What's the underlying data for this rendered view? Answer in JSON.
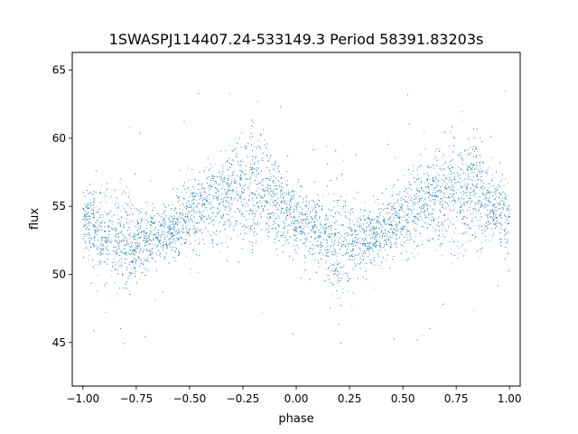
{
  "chart_data": {
    "type": "scatter",
    "title": "1SWASPJ114407.24-533149.3 Period 58391.83203s",
    "xlabel": "phase",
    "ylabel": "flux",
    "xlim": [
      -1.05,
      1.05
    ],
    "ylim": [
      41.8,
      66.3
    ],
    "x_ticks": [
      -1.0,
      -0.75,
      -0.5,
      -0.25,
      0.0,
      0.25,
      0.5,
      0.75,
      1.0
    ],
    "x_tick_labels": [
      "−1.00",
      "−0.75",
      "−0.50",
      "−0.25",
      "0.00",
      "0.25",
      "0.50",
      "0.75",
      "1.00"
    ],
    "y_ticks": [
      45,
      50,
      55,
      60,
      65
    ],
    "y_tick_labels": [
      "45",
      "50",
      "55",
      "60",
      "65"
    ],
    "grid": false,
    "legend": "none",
    "point_color": "#1f77b4",
    "series": [
      {
        "x": [
          -1.0,
          -0.95,
          -0.9,
          -0.85,
          -0.8,
          -0.75,
          -0.7,
          -0.65,
          -0.6,
          -0.55,
          -0.5,
          -0.45,
          -0.4,
          -0.35,
          -0.3,
          -0.25,
          -0.2,
          -0.15,
          -0.1,
          -0.05,
          0.0,
          0.05,
          0.1,
          0.15,
          0.2,
          0.25,
          0.3,
          0.35,
          0.4,
          0.45,
          0.5,
          0.55,
          0.6,
          0.65,
          0.7,
          0.75,
          0.8,
          0.85,
          0.9,
          0.95,
          1.0
        ],
        "y": [
          54.0,
          53.6,
          53.1,
          52.5,
          52.2,
          52.3,
          52.6,
          52.9,
          53.2,
          53.7,
          54.3,
          54.8,
          55.3,
          55.6,
          55.8,
          55.9,
          56.0,
          55.9,
          55.3,
          54.6,
          54.0,
          53.6,
          53.1,
          52.5,
          52.2,
          52.3,
          52.6,
          52.9,
          53.2,
          53.7,
          54.3,
          54.8,
          55.3,
          55.6,
          55.8,
          55.9,
          56.0,
          55.9,
          55.3,
          54.6,
          54.0
        ],
        "y_spread": [
          1.6,
          1.8,
          2.0,
          2.4,
          2.6,
          2.0,
          1.5,
          1.3,
          1.4,
          1.6,
          1.8,
          1.9,
          2.0,
          2.2,
          2.4,
          2.7,
          2.8,
          2.5,
          2.1,
          1.8,
          1.6,
          1.8,
          2.0,
          2.4,
          2.6,
          2.0,
          1.5,
          1.3,
          1.4,
          1.6,
          1.8,
          1.9,
          2.0,
          2.2,
          2.4,
          2.7,
          2.8,
          2.5,
          2.1,
          1.8,
          1.6
        ]
      }
    ]
  }
}
